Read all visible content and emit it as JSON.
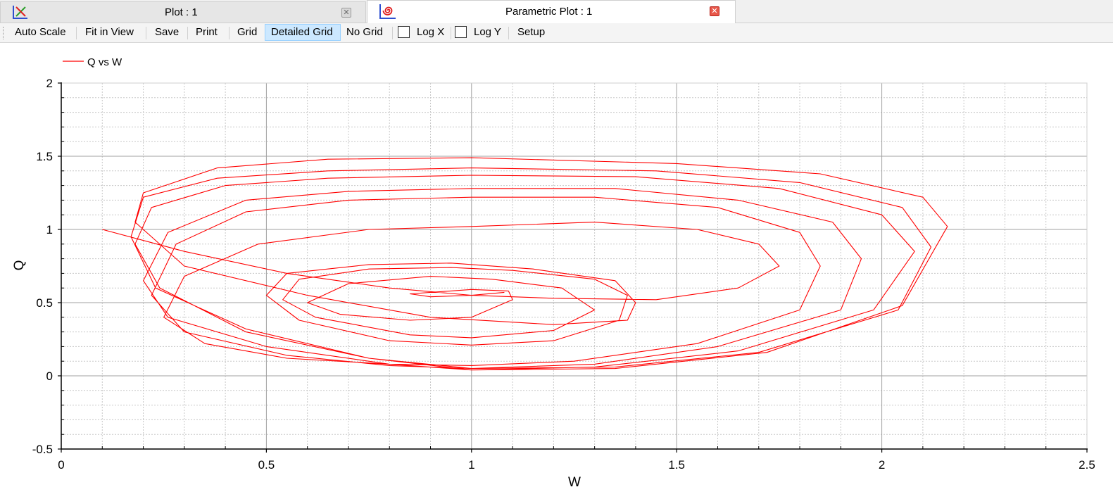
{
  "tabs": [
    {
      "title": "Plot : 1",
      "icon": "line-plot-icon",
      "active": false
    },
    {
      "title": "Parametric Plot : 1",
      "icon": "parametric-spiral-icon",
      "active": true
    }
  ],
  "toolbar": {
    "auto_scale": "Auto Scale",
    "fit_in_view": "Fit in View",
    "save": "Save",
    "print": "Print",
    "grid": "Grid",
    "detailed_grid": "Detailed Grid",
    "no_grid": "No Grid",
    "log_x": "Log X",
    "log_y": "Log Y",
    "setup": "Setup",
    "active_grid_mode": "Detailed Grid",
    "log_x_checked": false,
    "log_y_checked": false
  },
  "colors": {
    "series": "#ff0000",
    "active_button": "#cce8ff"
  },
  "chart_data": {
    "type": "line",
    "xlabel": "W",
    "ylabel": "Q",
    "xlim": [
      0,
      2.5
    ],
    "ylim": [
      -0.5,
      2
    ],
    "x_ticks": [
      "0",
      "0.5",
      "1",
      "1.5",
      "2",
      "2.5"
    ],
    "y_ticks": [
      "2",
      "1.5",
      "1",
      "0.5",
      "0",
      "-0.5"
    ],
    "grid": "detailed",
    "legend": "top-left",
    "series": [
      {
        "name": "Q vs W",
        "color": "#ff0000",
        "x": [
          0.1,
          0.3,
          0.55,
          0.8,
          1.0,
          1.2,
          1.45,
          1.65,
          1.75,
          1.7,
          1.55,
          1.3,
          1.0,
          0.75,
          0.48,
          0.3,
          0.25,
          0.35,
          0.55,
          0.8,
          1.0,
          1.25,
          1.55,
          1.8,
          1.85,
          1.8,
          1.6,
          1.3,
          1.0,
          0.7,
          0.45,
          0.28,
          0.22,
          0.3,
          0.55,
          0.8,
          1.0,
          1.3,
          1.6,
          1.9,
          1.95,
          1.88,
          1.65,
          1.35,
          1.0,
          0.7,
          0.45,
          0.26,
          0.2,
          0.26,
          0.5,
          0.8,
          1.0,
          1.3,
          1.65,
          1.98,
          2.08,
          2.0,
          1.75,
          1.4,
          1.0,
          0.65,
          0.4,
          0.22,
          0.18,
          0.24,
          0.45,
          0.75,
          1.0,
          1.35,
          1.7,
          2.04,
          2.12,
          2.05,
          1.8,
          1.45,
          1.0,
          0.65,
          0.38,
          0.2,
          0.17,
          0.23,
          0.45,
          0.75,
          1.0,
          1.35,
          1.72,
          2.05,
          2.16,
          2.1,
          1.85,
          1.5,
          1.0,
          0.65,
          0.38,
          0.2,
          0.18,
          0.3,
          0.6,
          0.9,
          1.2,
          1.38,
          1.4,
          1.35,
          1.15,
          0.95,
          0.75,
          0.55,
          0.5,
          0.58,
          0.8,
          1.0,
          1.2,
          1.36,
          1.38,
          1.3,
          1.1,
          0.95,
          0.75,
          0.58,
          0.54,
          0.62,
          0.85,
          1.0,
          1.2,
          1.3,
          1.22,
          1.05,
          0.9,
          0.7,
          0.6,
          0.68,
          0.85,
          1.0,
          1.1,
          1.09,
          1.0,
          0.85,
          0.9,
          1.0,
          1.08
        ],
        "y": [
          1.0,
          0.85,
          0.7,
          0.6,
          0.55,
          0.53,
          0.52,
          0.6,
          0.75,
          0.9,
          1.0,
          1.05,
          1.02,
          1.0,
          0.9,
          0.68,
          0.4,
          0.22,
          0.12,
          0.08,
          0.07,
          0.1,
          0.22,
          0.45,
          0.75,
          0.98,
          1.15,
          1.22,
          1.22,
          1.2,
          1.12,
          0.9,
          0.55,
          0.3,
          0.14,
          0.07,
          0.05,
          0.08,
          0.2,
          0.45,
          0.8,
          1.05,
          1.2,
          1.28,
          1.28,
          1.26,
          1.2,
          0.98,
          0.65,
          0.4,
          0.2,
          0.08,
          0.04,
          0.06,
          0.17,
          0.45,
          0.85,
          1.1,
          1.28,
          1.36,
          1.37,
          1.35,
          1.3,
          1.15,
          0.9,
          0.6,
          0.3,
          0.12,
          0.05,
          0.06,
          0.16,
          0.45,
          0.88,
          1.15,
          1.32,
          1.4,
          1.42,
          1.4,
          1.35,
          1.22,
          0.95,
          0.6,
          0.32,
          0.12,
          0.04,
          0.05,
          0.16,
          0.48,
          1.02,
          1.22,
          1.38,
          1.45,
          1.49,
          1.48,
          1.42,
          1.25,
          1.05,
          0.75,
          0.55,
          0.4,
          0.35,
          0.38,
          0.5,
          0.65,
          0.73,
          0.77,
          0.76,
          0.7,
          0.55,
          0.38,
          0.24,
          0.21,
          0.24,
          0.38,
          0.55,
          0.66,
          0.72,
          0.74,
          0.73,
          0.66,
          0.52,
          0.4,
          0.28,
          0.26,
          0.31,
          0.45,
          0.6,
          0.66,
          0.68,
          0.63,
          0.5,
          0.42,
          0.38,
          0.4,
          0.52,
          0.58,
          0.59,
          0.56,
          0.54,
          0.55,
          0.57
        ]
      }
    ]
  }
}
